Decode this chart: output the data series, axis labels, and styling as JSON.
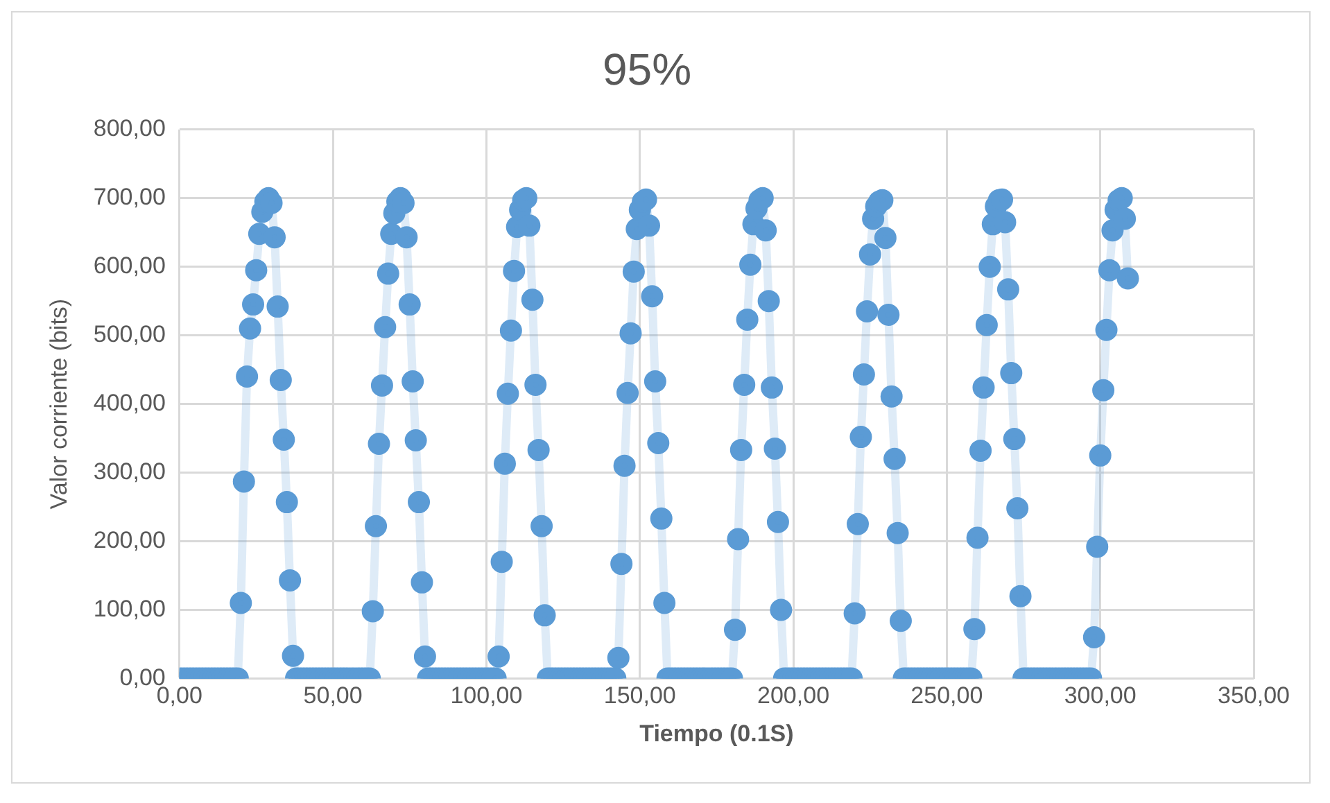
{
  "chart_data": {
    "type": "line",
    "title": "95%",
    "xlabel": "Tiempo (0.1S)",
    "ylabel": "Valor corriente (bits)",
    "xlim": [
      0,
      350
    ],
    "xticks": [
      {
        "value": 0,
        "label": "0,00"
      },
      {
        "value": 50,
        "label": "50,00"
      },
      {
        "value": 100,
        "label": "100,00"
      },
      {
        "value": 150,
        "label": "150,00"
      },
      {
        "value": 200,
        "label": "200,00"
      },
      {
        "value": 250,
        "label": "250,00"
      },
      {
        "value": 300,
        "label": "300,00"
      },
      {
        "value": 350,
        "label": "350,00"
      }
    ],
    "ylim": [
      0,
      800
    ],
    "yticks": [
      {
        "value": 0,
        "label": "0,00"
      },
      {
        "value": 100,
        "label": "100,00"
      },
      {
        "value": 200,
        "label": "200,00"
      },
      {
        "value": 300,
        "label": "300,00"
      },
      {
        "value": 400,
        "label": "400,00"
      },
      {
        "value": 500,
        "label": "500,00"
      },
      {
        "value": 600,
        "label": "600,00"
      },
      {
        "value": 700,
        "label": "700,00"
      },
      {
        "value": 800,
        "label": "800,00"
      }
    ],
    "grid": true,
    "marker": "circle",
    "line_style": "solid",
    "x": [
      0,
      1,
      2,
      3,
      4,
      5,
      6,
      7,
      8,
      9,
      10,
      11,
      12,
      13,
      14,
      15,
      16,
      17,
      18,
      19,
      20,
      21,
      22,
      23,
      24,
      25,
      26,
      27,
      28,
      29,
      30,
      31,
      32,
      33,
      34,
      35,
      36,
      37,
      38,
      39,
      40,
      41,
      42,
      43,
      44,
      45,
      46,
      47,
      48,
      49,
      50,
      51,
      52,
      53,
      54,
      55,
      56,
      57,
      58,
      59,
      60,
      61,
      62,
      63,
      64,
      65,
      66,
      67,
      68,
      69,
      70,
      71,
      72,
      73,
      74,
      75,
      76,
      77,
      78,
      79,
      80,
      81,
      82,
      83,
      84,
      85,
      86,
      87,
      88,
      89,
      90,
      91,
      92,
      93,
      94,
      95,
      96,
      97,
      98,
      99,
      100,
      101,
      102,
      103,
      104,
      105,
      106,
      107,
      108,
      109,
      110,
      111,
      112,
      113,
      114,
      115,
      116,
      117,
      118,
      119,
      120,
      121,
      122,
      123,
      124,
      125,
      126,
      127,
      128,
      129,
      130,
      131,
      132,
      133,
      134,
      135,
      136,
      137,
      138,
      139,
      140,
      141,
      142,
      143,
      144,
      145,
      146,
      147,
      148,
      149,
      150,
      151,
      152,
      153,
      154,
      155,
      156,
      157,
      158,
      159,
      160,
      161,
      162,
      163,
      164,
      165,
      166,
      167,
      168,
      169,
      170,
      171,
      172,
      173,
      174,
      175,
      176,
      177,
      178,
      179,
      180,
      181,
      182,
      183,
      184,
      185,
      186,
      187,
      188,
      189,
      190,
      191,
      192,
      193,
      194,
      195,
      196,
      197,
      198,
      199,
      200,
      201,
      202,
      203,
      204,
      205,
      206,
      207,
      208,
      209,
      210,
      211,
      212,
      213,
      214,
      215,
      216,
      217,
      218,
      219,
      220,
      221,
      222,
      223,
      224,
      225,
      226,
      227,
      228,
      229,
      230,
      231,
      232,
      233,
      234,
      235,
      236,
      237,
      238,
      239,
      240,
      241,
      242,
      243,
      244,
      245,
      246,
      247,
      248,
      249,
      250,
      251,
      252,
      253,
      254,
      255,
      256,
      257,
      258,
      259,
      260,
      261,
      262,
      263,
      264,
      265,
      266,
      267,
      268,
      269,
      270,
      271,
      272,
      273,
      274,
      275,
      276,
      277,
      278,
      279,
      280,
      281,
      282,
      283,
      284,
      285,
      286,
      287,
      288,
      289,
      290,
      291,
      292,
      293,
      294,
      295,
      296,
      297,
      298,
      299,
      300,
      301,
      302,
      303,
      304,
      305,
      306,
      307,
      308,
      309
    ],
    "series": [
      {
        "color": "#5b9bd5",
        "values": [
          0,
          0,
          0,
          0,
          0,
          0,
          0,
          0,
          0,
          0,
          0,
          0,
          0,
          0,
          0,
          0,
          0,
          0,
          0,
          0,
          110,
          287,
          440,
          510,
          545,
          595,
          648,
          680,
          695,
          700,
          693,
          643,
          542,
          435,
          348,
          257,
          143,
          33,
          0,
          0,
          0,
          0,
          0,
          0,
          0,
          0,
          0,
          0,
          0,
          0,
          0,
          0,
          0,
          0,
          0,
          0,
          0,
          0,
          0,
          0,
          0,
          0,
          0,
          98,
          222,
          342,
          427,
          512,
          590,
          648,
          678,
          695,
          700,
          693,
          643,
          545,
          433,
          347,
          257,
          140,
          32,
          0,
          0,
          0,
          0,
          0,
          0,
          0,
          0,
          0,
          0,
          0,
          0,
          0,
          0,
          0,
          0,
          0,
          0,
          0,
          0,
          0,
          0,
          0,
          32,
          170,
          313,
          415,
          507,
          594,
          658,
          683,
          697,
          700,
          660,
          552,
          428,
          333,
          222,
          92,
          0,
          0,
          0,
          0,
          0,
          0,
          0,
          0,
          0,
          0,
          0,
          0,
          0,
          0,
          0,
          0,
          0,
          0,
          0,
          0,
          0,
          0,
          0,
          30,
          167,
          310,
          416,
          503,
          593,
          655,
          683,
          695,
          698,
          660,
          557,
          433,
          343,
          233,
          110,
          0,
          0,
          0,
          0,
          0,
          0,
          0,
          0,
          0,
          0,
          0,
          0,
          0,
          0,
          0,
          0,
          0,
          0,
          0,
          0,
          0,
          0,
          71,
          203,
          333,
          428,
          523,
          603,
          662,
          685,
          697,
          700,
          653,
          550,
          424,
          335,
          228,
          100,
          0,
          0,
          0,
          0,
          0,
          0,
          0,
          0,
          0,
          0,
          0,
          0,
          0,
          0,
          0,
          0,
          0,
          0,
          0,
          0,
          0,
          0,
          0,
          95,
          225,
          352,
          443,
          535,
          618,
          670,
          688,
          695,
          697,
          642,
          530,
          411,
          320,
          212,
          84,
          0,
          0,
          0,
          0,
          0,
          0,
          0,
          0,
          0,
          0,
          0,
          0,
          0,
          0,
          0,
          0,
          0,
          0,
          0,
          0,
          0,
          0,
          0,
          72,
          205,
          332,
          424,
          515,
          600,
          662,
          688,
          697,
          698,
          665,
          567,
          445,
          349,
          248,
          120,
          0,
          0,
          0,
          0,
          0,
          0,
          0,
          0,
          0,
          0,
          0,
          0,
          0,
          0,
          0,
          0,
          0,
          0,
          0,
          0,
          0,
          0,
          0,
          60,
          192,
          325,
          420,
          508,
          595,
          653,
          683,
          697,
          700,
          670,
          583
        ]
      }
    ]
  }
}
